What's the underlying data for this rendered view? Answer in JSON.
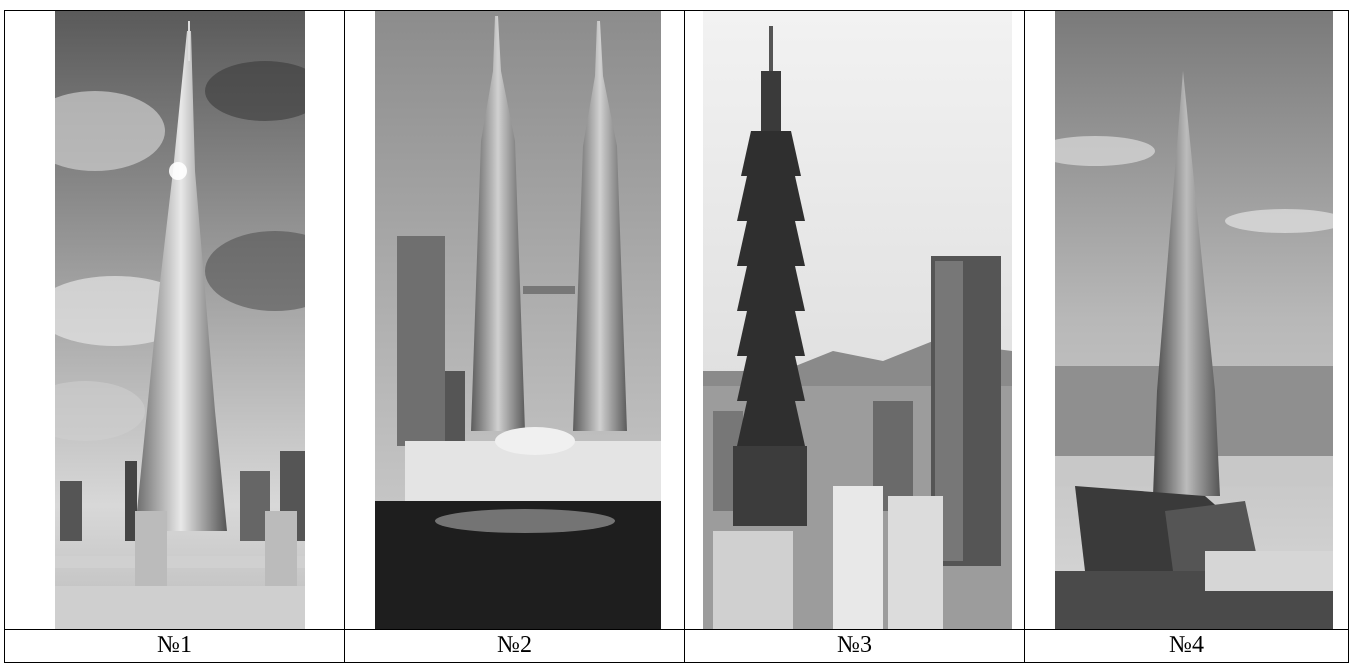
{
  "photos": [
    {
      "label": "№1",
      "subject": "Burj Khalifa"
    },
    {
      "label": "№2",
      "subject": "Petronas Twin Towers"
    },
    {
      "label": "№3",
      "subject": "Taipei 101"
    },
    {
      "label": "№4",
      "subject": "Lakhta Center"
    }
  ]
}
